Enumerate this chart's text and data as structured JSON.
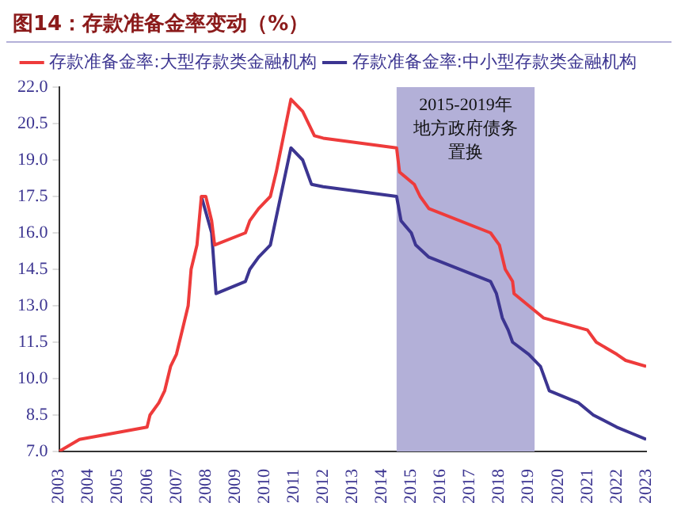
{
  "chart_data": {
    "type": "line",
    "title": "图14：存款准备金率变动（%）",
    "xlim": [
      2003,
      2023
    ],
    "xticks": [
      2003,
      2004,
      2005,
      2006,
      2007,
      2008,
      2009,
      2010,
      2011,
      2012,
      2013,
      2014,
      2015,
      2016,
      2017,
      2018,
      2019,
      2020,
      2021,
      2022,
      2023
    ],
    "ylim": [
      7,
      22
    ],
    "yticks": [
      {
        "value": 7,
        "label": "7.0"
      },
      {
        "value": 8.5,
        "label": "8.5"
      },
      {
        "value": 10,
        "label": "10.0"
      },
      {
        "value": 11.5,
        "label": "11.5"
      },
      {
        "value": 13,
        "label": "13.0"
      },
      {
        "value": 14.5,
        "label": "14.5"
      },
      {
        "value": 16,
        "label": "16.0"
      },
      {
        "value": 17.5,
        "label": "17.5"
      },
      {
        "value": 19,
        "label": "19.0"
      },
      {
        "value": 20.5,
        "label": "20.5"
      },
      {
        "value": 22,
        "label": "22.0"
      }
    ],
    "grid": false,
    "legend": "top right",
    "bands": [
      {
        "axis": "x",
        "from": 2014.5,
        "to": 2019.2,
        "label": "2015-2019年地方政府债务置换",
        "color": "#b3b0d8"
      }
    ],
    "series": [
      {
        "name": "存款准备金率:中小型存款类金融机构",
        "color": "#3c3591",
        "x": [
          2007.85,
          2008.2,
          2008.35,
          2009.35,
          2009.5,
          2009.8,
          2010.2,
          2010.9,
          2011.3,
          2011.6,
          2012,
          2014.5,
          2014.65,
          2015,
          2015.15,
          2015.6,
          2017.7,
          2017.9,
          2018.1,
          2018.3,
          2018.45,
          2019,
          2019.4,
          2019.7,
          2020.7,
          2021.2,
          2022,
          2022.5,
          2023
        ],
        "values": [
          17.5,
          16,
          13.5,
          14,
          14.5,
          15,
          15.5,
          19.5,
          19,
          18,
          17.9,
          17.5,
          16.5,
          16,
          15.5,
          15,
          14,
          13.5,
          12.5,
          12,
          11.5,
          11,
          10.5,
          9.5,
          9,
          8.5,
          8,
          7.75,
          7.5
        ]
      },
      {
        "name": "存款准备金率:大型存款类金融机构",
        "color": "#ee3b3b",
        "x": [
          2003,
          2003.7,
          2006,
          2006.1,
          2006.4,
          2006.6,
          2006.8,
          2007,
          2007.2,
          2007.4,
          2007.5,
          2007.7,
          2007.85,
          2008,
          2008.2,
          2008.3,
          2009.35,
          2009.5,
          2009.8,
          2010.2,
          2010.4,
          2010.9,
          2011.3,
          2011.7,
          2012,
          2014.5,
          2014.6,
          2015.1,
          2015.3,
          2015.6,
          2017.7,
          2018,
          2018.2,
          2018.45,
          2018.5,
          2019,
          2019.5,
          2021,
          2021.3,
          2022,
          2022.3,
          2023
        ],
        "values": [
          7,
          7.5,
          8,
          8.5,
          9,
          9.5,
          10.5,
          11,
          12,
          13,
          14.5,
          15.5,
          17.5,
          17.5,
          16.5,
          15.5,
          16,
          16.5,
          17,
          17.5,
          18.5,
          21.5,
          21,
          20,
          19.9,
          19.5,
          18.5,
          18,
          17.5,
          17,
          16,
          15.5,
          14.5,
          14,
          13.5,
          13,
          12.5,
          12,
          11.5,
          11,
          10.75,
          10.5
        ]
      }
    ]
  }
}
